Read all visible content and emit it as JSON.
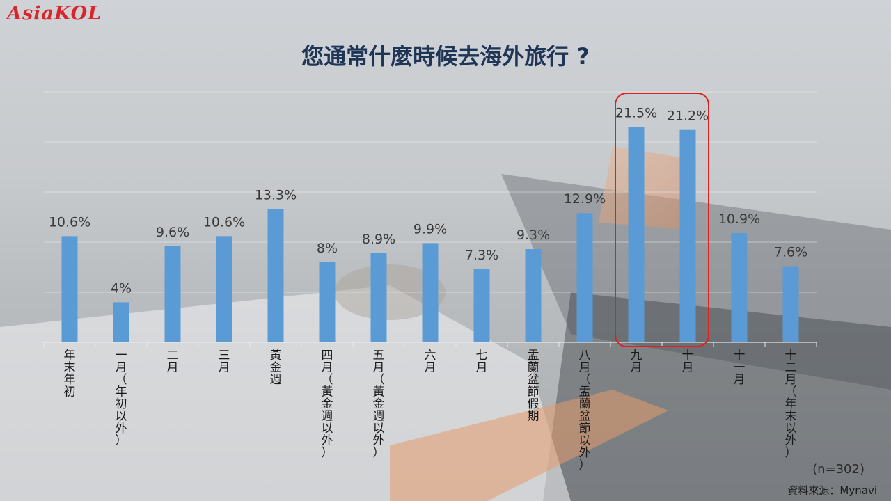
{
  "logo_text": "AsiaKOL",
  "title": "您通常什麼時候去海外旅行 ?",
  "sample_note": "(n=302)",
  "source_note": "資料來源：Mynavi",
  "colors": {
    "bar": "#5b9bd5",
    "highlight": "#e0201e",
    "title": "#1f3556"
  },
  "chart_data": {
    "type": "bar",
    "categories": [
      "年末年初",
      "一月（年初以外）",
      "二月",
      "三月",
      "黃金週",
      "四月（黃金週以外）",
      "五月（黃金週以外）",
      "六月",
      "七月",
      "盂蘭盆節假期",
      "八月（盂蘭盆節以外）",
      "九月",
      "十月",
      "十一月",
      "十二月（年末以外）"
    ],
    "values": [
      10.6,
      4,
      9.6,
      10.6,
      13.3,
      8,
      8.9,
      9.9,
      7.3,
      9.3,
      12.9,
      21.5,
      21.2,
      10.9,
      7.6
    ],
    "value_labels": [
      "10.6%",
      "4%",
      "9.6%",
      "10.6%",
      "13.3%",
      "8%",
      "8.9%",
      "9.9%",
      "7.3%",
      "9.3%",
      "12.9%",
      "21.5%",
      "21.2%",
      "10.9%",
      "7.6%"
    ],
    "ylim": [
      0,
      25
    ],
    "grid": true,
    "highlighted_categories": [
      "九月",
      "十月"
    ]
  }
}
